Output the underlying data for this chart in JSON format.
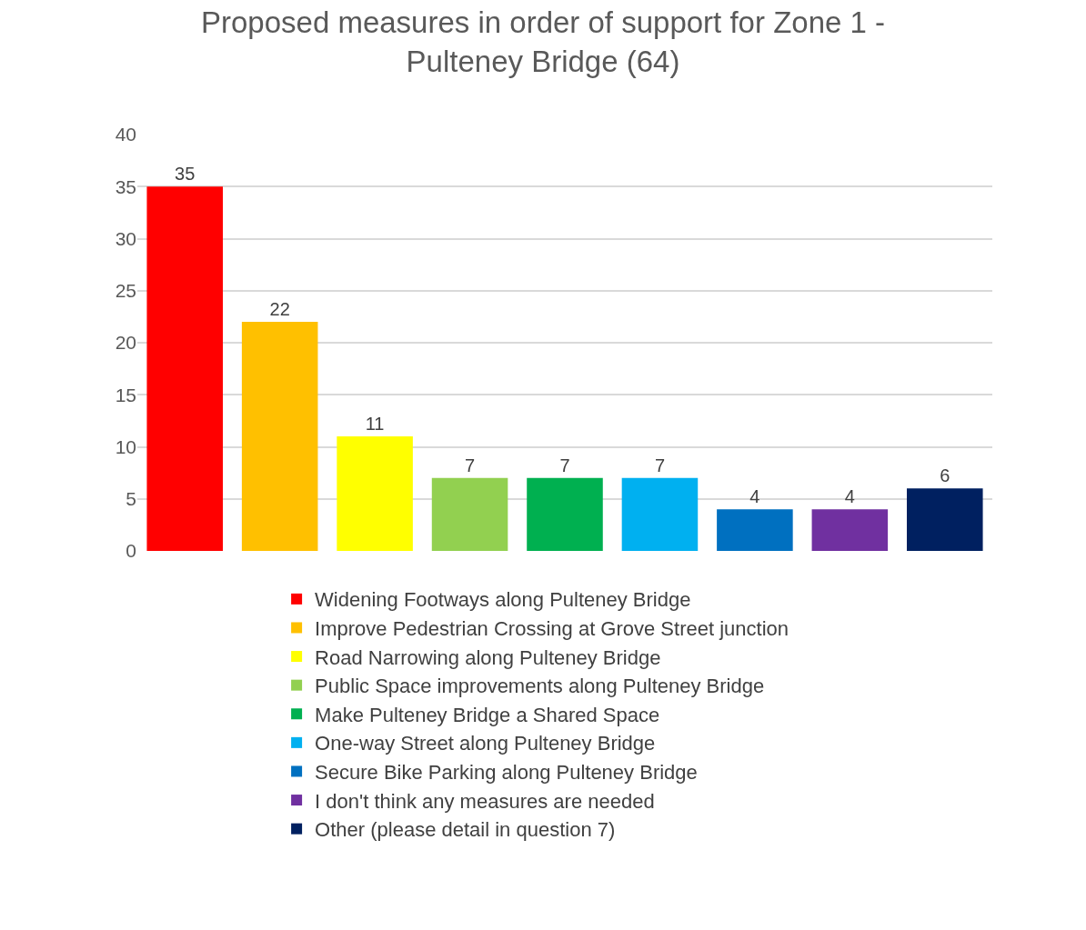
{
  "chart_data": {
    "type": "bar",
    "title": "Proposed measures in order of support for Zone 1 - Pulteney Bridge (64)",
    "categories": [
      null,
      null,
      null,
      null,
      null,
      null,
      null,
      null,
      null
    ],
    "series": [
      {
        "name": "Widening Footways along Pulteney Bridge",
        "color": "#ff0000",
        "values": [
          35,
          null,
          null,
          null,
          null,
          null,
          null,
          null,
          null
        ]
      },
      {
        "name": "Improve Pedestrian Crossing at Grove Street junction",
        "color": "#ffc000",
        "values": [
          null,
          22,
          null,
          null,
          null,
          null,
          null,
          null,
          null
        ]
      },
      {
        "name": "Road Narrowing along Pulteney Bridge",
        "color": "#ffff00",
        "values": [
          null,
          null,
          11,
          null,
          null,
          null,
          null,
          null,
          null
        ]
      },
      {
        "name": "Public Space improvements along Pulteney Bridge",
        "color": "#92d050",
        "values": [
          null,
          null,
          null,
          7,
          null,
          null,
          null,
          null,
          null
        ]
      },
      {
        "name": "Make Pulteney Bridge a Shared Space",
        "color": "#00b050",
        "values": [
          null,
          null,
          null,
          null,
          7,
          null,
          null,
          null,
          null
        ]
      },
      {
        "name": "One-way Street along Pulteney Bridge",
        "color": "#00b0f0",
        "values": [
          null,
          null,
          null,
          null,
          null,
          7,
          null,
          null,
          null
        ]
      },
      {
        "name": "Secure Bike Parking along Pulteney Bridge",
        "color": "#0070c0",
        "values": [
          null,
          null,
          null,
          null,
          null,
          null,
          4,
          null,
          null
        ]
      },
      {
        "name": "I don't think any measures are needed",
        "color": "#7030a0",
        "values": [
          null,
          null,
          null,
          null,
          null,
          null,
          null,
          4,
          null
        ]
      },
      {
        "name": "Other (please detail in question 7)",
        "color": "#002060",
        "values": [
          null,
          null,
          null,
          null,
          null,
          null,
          null,
          null,
          6
        ]
      }
    ],
    "ylim": [
      0,
      40
    ],
    "yticks": [
      0,
      5,
      10,
      15,
      20,
      25,
      30,
      35,
      40
    ],
    "grid": "y",
    "legend": "bottom",
    "data_labels": true,
    "tick_labels": "y"
  }
}
